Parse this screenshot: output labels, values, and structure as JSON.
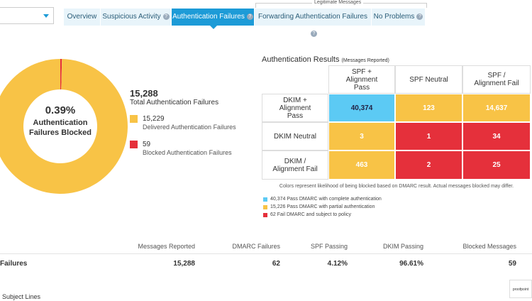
{
  "tabs": {
    "group_label": "Legitimate Messages",
    "items": [
      "Overview",
      "Suspicious Activity",
      "Authentication Failures",
      "Forwarding Authentication Failures",
      "No Problems"
    ],
    "active": 2
  },
  "donut": {
    "center_value": "0.39%",
    "center_label": "Authentication Failures Blocked",
    "total": "15,288",
    "total_label": "Total Authentication Failures",
    "segments": [
      {
        "value": 15229,
        "label": "15,229",
        "name": "Delivered Authentication Failures",
        "color": "#f8c346"
      },
      {
        "value": 59,
        "label": "59",
        "name": "Blocked Authentication Failures",
        "color": "#e5303b"
      }
    ]
  },
  "matrix": {
    "title": "Authentication Results",
    "subtitle": "(Messages Reported)",
    "columns": [
      "SPF + Alignment Pass",
      "SPF Neutral",
      "SPF / Alignment Fail"
    ],
    "rows": [
      {
        "label": "DKIM + Alignment Pass",
        "cells": [
          "40,374",
          "123",
          "14,637"
        ],
        "colors": [
          "#5ccaf4",
          "#f8c346",
          "#f8c346"
        ]
      },
      {
        "label": "DKIM Neutral",
        "cells": [
          "3",
          "1",
          "34"
        ],
        "colors": [
          "#f8c346",
          "#e5303b",
          "#e5303b"
        ]
      },
      {
        "label": "DKIM / Alignment Fail",
        "cells": [
          "463",
          "2",
          "25"
        ],
        "colors": [
          "#f8c346",
          "#e5303b",
          "#e5303b"
        ]
      }
    ],
    "note": "Colors represent likelihood of being blocked based on DMARC result. Actual messages blocked may differ.",
    "legend": [
      {
        "text": "40,374 Pass DMARC with complete authentication",
        "color": "#5ccaf4"
      },
      {
        "text": "15,226 Pass DMARC with partial authentication",
        "color": "#f8c346"
      },
      {
        "text": "62 Fail DMARC and subject to policy",
        "color": "#e5303b"
      }
    ]
  },
  "summary": {
    "headers": [
      "Messages Reported",
      "DMARC Failures",
      "SPF Passing",
      "DKIM Passing",
      "Blocked Messages"
    ],
    "row_label": "Failures",
    "values": [
      "15,288",
      "62",
      "4.12%",
      "96.61%",
      "59"
    ]
  },
  "footer": {
    "section": "Subject Lines",
    "logo": "proofpoint"
  }
}
